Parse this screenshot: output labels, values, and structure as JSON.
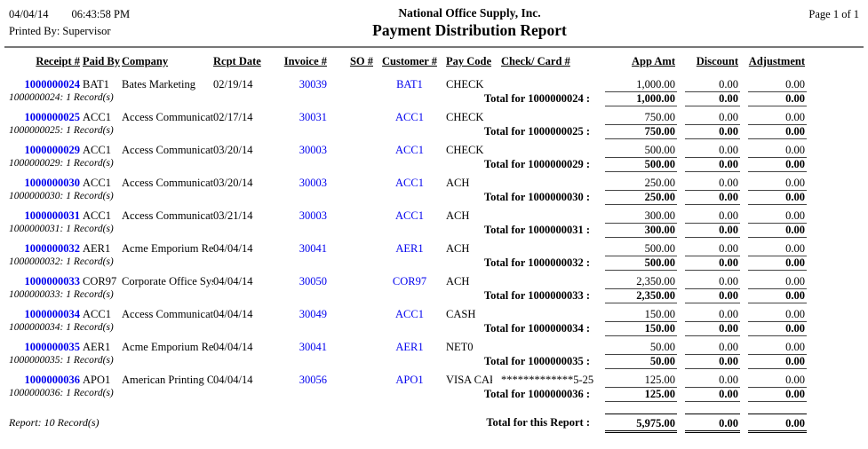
{
  "header": {
    "date": "04/04/14",
    "time": "06:43:58 PM",
    "printed_by": "Printed By: Supervisor",
    "company_name": "National Office Supply, Inc.",
    "report_title": "Payment Distribution Report",
    "page_label": "Page 1 of 1"
  },
  "columns": {
    "receipt": "Receipt #",
    "paid_by": "Paid By",
    "company": "Company",
    "rcpt_date": "Rcpt Date",
    "invoice": "Invoice #",
    "so": "SO #",
    "customer": "Customer #",
    "pay_code": "Pay Code",
    "check_card": "Check/ Card #",
    "app_amt": "App Amt",
    "discount": "Discount",
    "adjustment": "Adjustment"
  },
  "colors": {
    "link_blue": "#0000ee",
    "text": "#000000",
    "header_rule_gray": "#777777"
  },
  "groups": [
    {
      "receipt": "1000000024",
      "paid_by": "BAT1",
      "company": "Bates Marketing",
      "rcpt_date": "02/19/14",
      "invoice": "30039",
      "so": "",
      "customer": "BAT1",
      "pay_code": "CHECK",
      "check_card": "",
      "app_amt": "1,000.00",
      "discount": "0.00",
      "adjustment": "0.00",
      "record_note": "1000000024: 1 Record(s)",
      "total_label": "Total for 1000000024 :",
      "total_app_amt": "1,000.00",
      "total_discount": "0.00",
      "total_adjustment": "0.00"
    },
    {
      "receipt": "1000000025",
      "paid_by": "ACC1",
      "company": "Access Communications",
      "rcpt_date": "02/17/14",
      "invoice": "30031",
      "so": "",
      "customer": "ACC1",
      "pay_code": "CHECK",
      "check_card": "",
      "app_amt": "750.00",
      "discount": "0.00",
      "adjustment": "0.00",
      "record_note": "1000000025: 1 Record(s)",
      "total_label": "Total for 1000000025 :",
      "total_app_amt": "750.00",
      "total_discount": "0.00",
      "total_adjustment": "0.00"
    },
    {
      "receipt": "1000000029",
      "paid_by": "ACC1",
      "company": "Access Communications",
      "rcpt_date": "03/20/14",
      "invoice": "30003",
      "so": "",
      "customer": "ACC1",
      "pay_code": "CHECK",
      "check_card": "",
      "app_amt": "500.00",
      "discount": "0.00",
      "adjustment": "0.00",
      "record_note": "1000000029: 1 Record(s)",
      "total_label": "Total for 1000000029 :",
      "total_app_amt": "500.00",
      "total_discount": "0.00",
      "total_adjustment": "0.00"
    },
    {
      "receipt": "1000000030",
      "paid_by": "ACC1",
      "company": "Access Communications",
      "rcpt_date": "03/20/14",
      "invoice": "30003",
      "so": "",
      "customer": "ACC1",
      "pay_code": "ACH",
      "check_card": "",
      "app_amt": "250.00",
      "discount": "0.00",
      "adjustment": "0.00",
      "record_note": "1000000030: 1 Record(s)",
      "total_label": "Total for 1000000030 :",
      "total_app_amt": "250.00",
      "total_discount": "0.00",
      "total_adjustment": "0.00"
    },
    {
      "receipt": "1000000031",
      "paid_by": "ACC1",
      "company": "Access Communications",
      "rcpt_date": "03/21/14",
      "invoice": "30003",
      "so": "",
      "customer": "ACC1",
      "pay_code": "ACH",
      "check_card": "",
      "app_amt": "300.00",
      "discount": "0.00",
      "adjustment": "0.00",
      "record_note": "1000000031: 1 Record(s)",
      "total_label": "Total for 1000000031 :",
      "total_app_amt": "300.00",
      "total_discount": "0.00",
      "total_adjustment": "0.00"
    },
    {
      "receipt": "1000000032",
      "paid_by": "AER1",
      "company": "Acme Emporium Retail",
      "rcpt_date": "04/04/14",
      "invoice": "30041",
      "so": "",
      "customer": "AER1",
      "pay_code": "ACH",
      "check_card": "",
      "app_amt": "500.00",
      "discount": "0.00",
      "adjustment": "0.00",
      "record_note": "1000000032: 1 Record(s)",
      "total_label": "Total for 1000000032 :",
      "total_app_amt": "500.00",
      "total_discount": "0.00",
      "total_adjustment": "0.00"
    },
    {
      "receipt": "1000000033",
      "paid_by": "COR97",
      "company": "Corporate Office System",
      "rcpt_date": "04/04/14",
      "invoice": "30050",
      "so": "",
      "customer": "COR97",
      "pay_code": "ACH",
      "check_card": "",
      "app_amt": "2,350.00",
      "discount": "0.00",
      "adjustment": "0.00",
      "record_note": "1000000033: 1 Record(s)",
      "total_label": "Total for 1000000033 :",
      "total_app_amt": "2,350.00",
      "total_discount": "0.00",
      "total_adjustment": "0.00"
    },
    {
      "receipt": "1000000034",
      "paid_by": "ACC1",
      "company": "Access Communications",
      "rcpt_date": "04/04/14",
      "invoice": "30049",
      "so": "",
      "customer": "ACC1",
      "pay_code": "CASH",
      "check_card": "",
      "app_amt": "150.00",
      "discount": "0.00",
      "adjustment": "0.00",
      "record_note": "1000000034: 1 Record(s)",
      "total_label": "Total for 1000000034 :",
      "total_app_amt": "150.00",
      "total_discount": "0.00",
      "total_adjustment": "0.00"
    },
    {
      "receipt": "1000000035",
      "paid_by": "AER1",
      "company": "Acme Emporium Retail",
      "rcpt_date": "04/04/14",
      "invoice": "30041",
      "so": "",
      "customer": "AER1",
      "pay_code": "NET0",
      "check_card": "",
      "app_amt": "50.00",
      "discount": "0.00",
      "adjustment": "0.00",
      "record_note": "1000000035: 1 Record(s)",
      "total_label": "Total for 1000000035 :",
      "total_app_amt": "50.00",
      "total_discount": "0.00",
      "total_adjustment": "0.00"
    },
    {
      "receipt": "1000000036",
      "paid_by": "APO1",
      "company": "American Printing Orga",
      "rcpt_date": "04/04/14",
      "invoice": "30056",
      "so": "",
      "customer": "APO1",
      "pay_code": "VISA CARD",
      "check_card": "*************5-25",
      "app_amt": "125.00",
      "discount": "0.00",
      "adjustment": "0.00",
      "record_note": "1000000036: 1 Record(s)",
      "total_label": "Total for 1000000036 :",
      "total_app_amt": "125.00",
      "total_discount": "0.00",
      "total_adjustment": "0.00"
    }
  ],
  "footer": {
    "report_note": "Report: 10 Record(s)",
    "grand_total_label": "Total for this Report :",
    "grand_app_amt": "5,975.00",
    "grand_discount": "0.00",
    "grand_adjustment": "0.00"
  }
}
